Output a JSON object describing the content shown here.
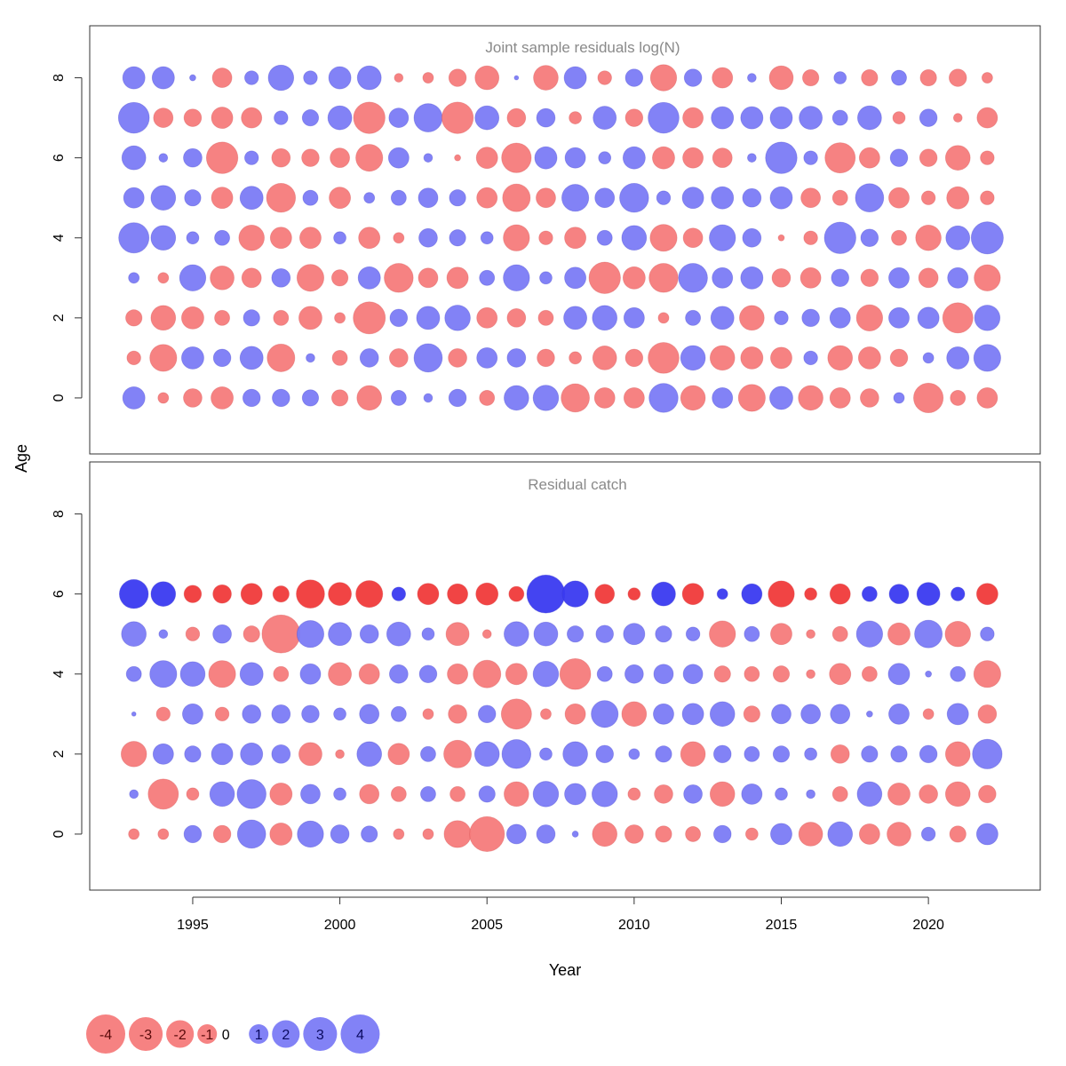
{
  "chart_data": {
    "type": "bubble",
    "xlabel": "Year",
    "ylabel": "Age",
    "x_ticks": [
      1995,
      2000,
      2005,
      2010,
      2015,
      2020
    ],
    "y_ticks": [
      0,
      2,
      4,
      6,
      8
    ],
    "xlim": [
      1991.5,
      2023.8
    ],
    "ylim": [
      -1.4,
      9.3
    ],
    "colors": {
      "positive_light": "#7b7bf5",
      "negative_light": "#f57b7b",
      "positive_dark": "#3a3af0",
      "negative_dark": "#f03a3a"
    },
    "legend": {
      "values": [
        -4,
        -3,
        -2,
        -1,
        0,
        1,
        2,
        3,
        4
      ],
      "labels": [
        "-4",
        "-3",
        "-2",
        "-1",
        "0",
        "1",
        "2",
        "3",
        "4"
      ]
    },
    "panels": [
      {
        "title": "Joint sample residuals log(N)",
        "years": [
          1993,
          1994,
          1995,
          1996,
          1997,
          1998,
          1999,
          2000,
          2001,
          2002,
          2003,
          2004,
          2005,
          2006,
          2007,
          2008,
          2009,
          2010,
          2011,
          2012,
          2013,
          2014,
          2015,
          2016,
          2017,
          2018,
          2019,
          2020,
          2021,
          2022
        ],
        "ages": [
          0,
          1,
          2,
          3,
          4,
          5,
          6,
          7,
          8
        ],
        "residuals": [
          [
            1.3,
            -0.3,
            -0.9,
            -1.3,
            0.8,
            0.8,
            0.7,
            -0.7,
            -1.6,
            0.6,
            0.2,
            0.8,
            -0.6,
            1.6,
            1.7,
            -2.1,
            -1.1,
            -1.1,
            2.2,
            -1.6,
            1.1,
            -1.9,
            1.4,
            -1.6,
            -1.1,
            -0.9,
            0.3,
            -2.3,
            -0.6,
            -1.1
          ],
          [
            -0.5,
            -1.9,
            1.3,
            0.8,
            1.4,
            -2.0,
            0.2,
            -0.6,
            0.9,
            -0.9,
            2.1,
            -0.9,
            1.1,
            0.9,
            -0.8,
            -0.4,
            -1.5,
            -0.8,
            -2.5,
            1.6,
            -1.6,
            -1.3,
            -1.2,
            0.5,
            -1.6,
            -1.3,
            -0.8,
            0.3,
            1.3,
            1.9
          ],
          [
            -0.7,
            -1.6,
            -1.3,
            -0.6,
            0.7,
            -0.6,
            -1.4,
            -0.3,
            -2.7,
            0.8,
            1.4,
            1.7,
            -1.1,
            -0.9,
            -0.6,
            1.4,
            1.6,
            1.1,
            -0.3,
            0.6,
            1.4,
            -1.6,
            0.5,
            0.8,
            1.1,
            -1.8,
            1.1,
            1.2,
            -2.4,
            1.7
          ],
          [
            0.3,
            -0.3,
            1.8,
            -1.5,
            -1.0,
            0.9,
            -1.9,
            -0.7,
            1.3,
            -2.2,
            -1.0,
            -1.2,
            0.6,
            1.8,
            0.4,
            1.2,
            -2.6,
            -1.3,
            -2.2,
            2.2,
            1.1,
            1.3,
            -0.9,
            -1.1,
            0.8,
            -0.8,
            1.1,
            -1.0,
            1.1,
            -1.8
          ],
          [
            2.4,
            1.6,
            0.4,
            0.6,
            -1.7,
            -1.2,
            -1.2,
            0.4,
            -1.2,
            -0.3,
            0.9,
            0.7,
            0.4,
            -1.8,
            -0.5,
            -1.2,
            0.6,
            1.6,
            -1.9,
            -1.0,
            1.8,
            0.9,
            -0.1,
            -0.5,
            2.6,
            0.8,
            -0.6,
            -1.7,
            1.5,
            2.7
          ],
          [
            1.1,
            1.6,
            0.7,
            -1.2,
            1.4,
            -2.2,
            0.6,
            -1.2,
            0.3,
            0.6,
            1.0,
            0.7,
            -1.1,
            -2.0,
            -1.0,
            1.9,
            1.0,
            2.2,
            0.5,
            1.2,
            1.3,
            0.9,
            1.3,
            -1.0,
            -0.6,
            2.1,
            -1.1,
            -0.5,
            -1.3,
            -0.5
          ],
          [
            1.5,
            0.2,
            0.9,
            -2.6,
            0.5,
            -0.9,
            -0.8,
            -1.0,
            -1.9,
            1.1,
            0.2,
            -0.1,
            -1.2,
            -2.3,
            1.3,
            1.1,
            0.4,
            1.3,
            -1.3,
            -1.1,
            -1.0,
            0.2,
            2.6,
            0.5,
            -2.4,
            -1.1,
            0.8,
            -0.8,
            -1.6,
            -0.5
          ],
          [
            2.5,
            -1.0,
            -0.8,
            -1.2,
            -1.1,
            0.5,
            0.7,
            1.5,
            -2.6,
            1.0,
            2.1,
            -2.6,
            1.5,
            -0.9,
            0.9,
            -0.4,
            1.4,
            -0.8,
            2.5,
            -1.1,
            1.3,
            1.3,
            1.3,
            1.4,
            0.6,
            1.5,
            -0.4,
            0.8,
            -0.2,
            -1.1
          ],
          [
            1.3,
            1.3,
            0.1,
            -1.0,
            0.5,
            1.7,
            0.5,
            1.3,
            1.5,
            -0.2,
            -0.3,
            -0.8,
            -1.5,
            0.05,
            -1.6,
            1.3,
            -0.5,
            0.8,
            -1.8,
            0.8,
            -1.1,
            0.2,
            -1.5,
            -0.7,
            0.4,
            -0.7,
            0.6,
            -0.7,
            -0.8,
            -0.3
          ]
        ]
      },
      {
        "title": "Residual catch",
        "years": [
          1993,
          1994,
          1995,
          1996,
          1997,
          1998,
          1999,
          2000,
          2001,
          2002,
          2003,
          2004,
          2005,
          2006,
          2007,
          2008,
          2009,
          2010,
          2011,
          2012,
          2013,
          2014,
          2015,
          2016,
          2017,
          2018,
          2019,
          2020,
          2021,
          2022
        ],
        "ages": [
          0,
          1,
          2,
          3,
          4,
          5,
          6
        ],
        "residuals": [
          [
            -0.3,
            -0.3,
            0.8,
            -0.8,
            2.1,
            -1.3,
            1.8,
            0.9,
            0.7,
            -0.3,
            -0.3,
            -1.9,
            -3.2,
            1.0,
            0.9,
            0.1,
            -1.6,
            -0.9,
            -0.7,
            -0.6,
            0.8,
            -0.4,
            1.2,
            -1.5,
            1.6,
            -1.1,
            -1.5,
            0.5,
            -0.7,
            1.2
          ],
          [
            0.2,
            -2.4,
            -0.4,
            1.6,
            2.2,
            -1.3,
            1.0,
            0.4,
            -1.0,
            -0.6,
            0.6,
            -0.6,
            0.7,
            -1.6,
            1.7,
            1.2,
            1.7,
            -0.4,
            -0.9,
            0.9,
            -1.6,
            1.1,
            0.4,
            0.2,
            -0.6,
            1.6,
            -1.3,
            -0.9,
            -1.6,
            -0.8
          ],
          [
            -1.7,
            1.1,
            0.7,
            1.2,
            1.3,
            0.9,
            -1.4,
            -0.2,
            1.6,
            -1.2,
            0.6,
            -2.0,
            1.6,
            2.2,
            0.4,
            1.6,
            0.8,
            0.3,
            0.7,
            -1.6,
            0.8,
            0.6,
            0.7,
            0.4,
            -0.9,
            0.7,
            0.7,
            0.8,
            -1.6,
            2.3
          ],
          [
            0.05,
            -0.5,
            1.1,
            -0.5,
            0.9,
            0.9,
            0.8,
            0.4,
            1.0,
            0.6,
            -0.3,
            -0.9,
            0.8,
            -2.4,
            -0.3,
            -1.1,
            1.9,
            -1.6,
            1.1,
            1.2,
            1.6,
            -0.7,
            1.0,
            1.0,
            1.0,
            0.1,
            1.1,
            -0.3,
            1.2,
            -0.9
          ],
          [
            0.6,
            1.9,
            1.6,
            -1.9,
            1.4,
            -0.6,
            1.1,
            -1.4,
            -1.1,
            0.9,
            0.8,
            -1.1,
            -2.0,
            -1.2,
            1.7,
            -2.5,
            0.6,
            0.9,
            1.0,
            1.0,
            -0.7,
            -0.6,
            -0.7,
            -0.2,
            -1.2,
            -0.6,
            1.2,
            0.1,
            0.6,
            -1.9
          ],
          [
            1.6,
            0.2,
            -0.5,
            0.9,
            -0.7,
            -3.8,
            1.9,
            1.4,
            0.9,
            1.5,
            0.4,
            -1.4,
            -0.2,
            1.6,
            1.5,
            0.7,
            0.8,
            1.2,
            0.7,
            0.5,
            -1.8,
            0.6,
            -1.2,
            -0.2,
            -0.6,
            1.8,
            -1.3,
            2.0,
            -1.7,
            0.5
          ],
          [
            2.2,
            1.6,
            -0.8,
            -0.9,
            -1.2,
            -0.7,
            -2.1,
            -1.4,
            -1.9,
            0.5,
            -1.2,
            -1.1,
            -1.3,
            -0.6,
            3.8,
            1.8,
            -1.0,
            -0.4,
            1.5,
            -1.2,
            0.3,
            1.1,
            -1.8,
            -0.4,
            -1.1,
            0.6,
            1.0,
            1.4,
            0.5,
            -1.2
          ]
        ]
      }
    ]
  }
}
